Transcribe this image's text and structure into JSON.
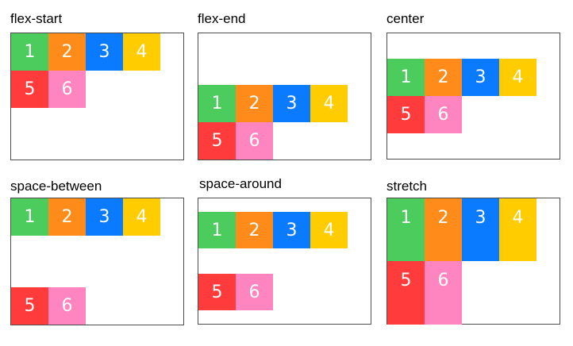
{
  "colors": {
    "item_1": "#4ccc5c",
    "item_2": "#ff8c1a",
    "item_3": "#0a7aff",
    "item_4": "#ffcc00",
    "item_5": "#ff3b3b",
    "item_6": "#ff85c0"
  },
  "panels": [
    {
      "title": "flex-start",
      "items": [
        "1",
        "2",
        "3",
        "4",
        "5",
        "6"
      ]
    },
    {
      "title": "flex-end",
      "items": [
        "1",
        "2",
        "3",
        "4",
        "5",
        "6"
      ]
    },
    {
      "title": "center",
      "items": [
        "1",
        "2",
        "3",
        "4",
        "5",
        "6"
      ]
    },
    {
      "title": "space-between",
      "items": [
        "1",
        "2",
        "3",
        "4",
        "5",
        "6"
      ]
    },
    {
      "title": "space-around",
      "items": [
        "1",
        "2",
        "3",
        "4",
        "5",
        "6"
      ]
    },
    {
      "title": "stretch",
      "items": [
        "1",
        "2",
        "3",
        "4",
        "5",
        "6"
      ]
    }
  ]
}
